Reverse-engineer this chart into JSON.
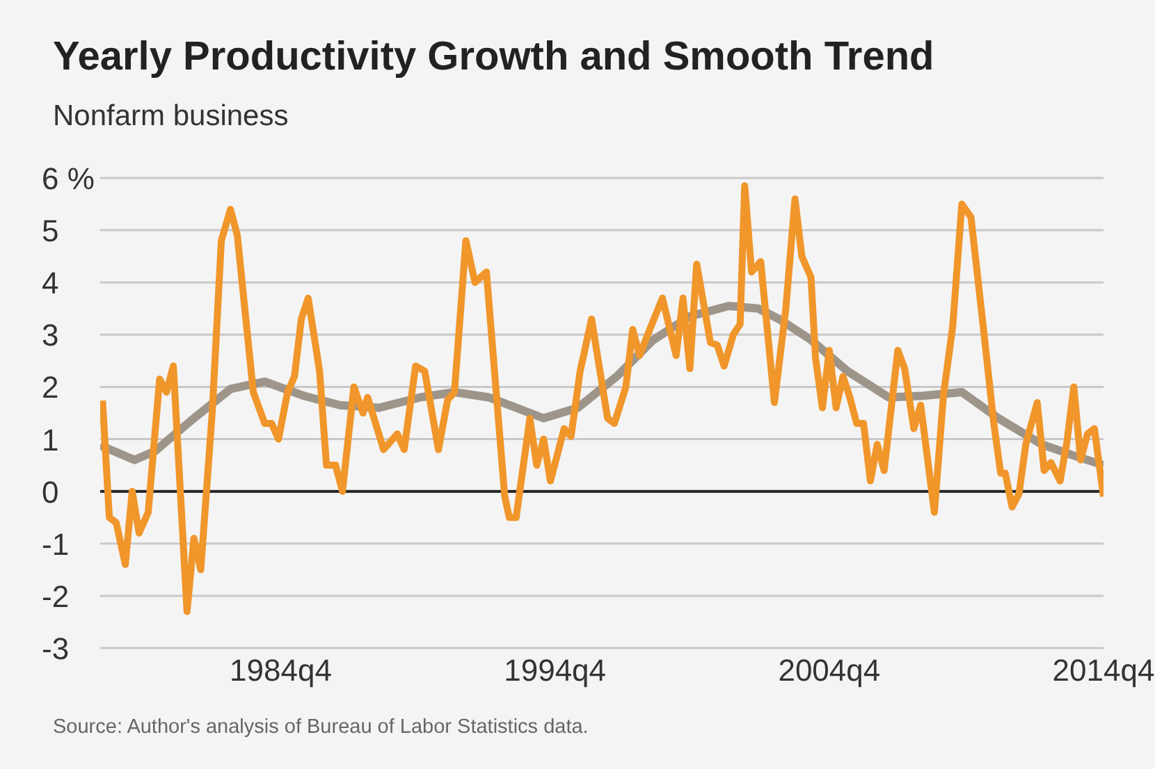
{
  "chart_data": {
    "type": "line",
    "title": "Yearly Productivity Growth and Smooth Trend",
    "subtitle": "Nonfarm business",
    "annotations": [
      "Source: Author's analysis of Bureau of Labor Statistics data."
    ],
    "xlim": [
      "1978-03",
      "2014-10"
    ],
    "xticks": [
      {
        "value": "1984-10",
        "label": "1984q4"
      },
      {
        "value": "1994-10",
        "label": "1994q4"
      },
      {
        "value": "2004-10",
        "label": "2004q4"
      },
      {
        "value": "2014-10",
        "label": "2014q4"
      }
    ],
    "ylim": [
      -3,
      6
    ],
    "yticks": [
      {
        "value": 6,
        "label": "6 %"
      },
      5,
      4,
      3,
      2,
      1,
      0,
      -1,
      -2,
      -3
    ],
    "grid": "y",
    "marker": "none",
    "line_style": "solid",
    "ref_lines": [
      {
        "axis": "y",
        "value": 0,
        "color": "#222222"
      }
    ],
    "series": [
      {
        "color": "#9e958a",
        "x": [
          "1978-03",
          "1979-06",
          "1980-03",
          "1981-08",
          "1982-12",
          "1984-03",
          "1985-08",
          "1986-12",
          "1988-05",
          "1989-11",
          "1991-02",
          "1992-05",
          "1994-05",
          "1995-08",
          "1997-01",
          "1998-05",
          "1999-09",
          "2001-02",
          "2002-03",
          "2002-12",
          "2004-02",
          "2005-06",
          "2006-12",
          "2008-03",
          "2009-08",
          "2010-12",
          "2012-07",
          "2013-08",
          "2014-10"
        ],
        "values": [
          0.88,
          0.6,
          0.77,
          1.4,
          1.96,
          2.1,
          1.83,
          1.65,
          1.6,
          1.8,
          1.9,
          1.8,
          1.4,
          1.6,
          2.2,
          2.9,
          3.35,
          3.55,
          3.5,
          3.3,
          2.9,
          2.3,
          1.8,
          1.83,
          1.9,
          1.4,
          0.9,
          0.7,
          0.5
        ]
      },
      {
        "color": "#f0962a",
        "x": [
          "1978-04",
          "1978-07",
          "1978-10",
          "1979-02",
          "1979-05",
          "1979-08",
          "1979-12",
          "1980-05",
          "1980-08",
          "1980-11",
          "1981-05",
          "1981-08",
          "1981-11",
          "1982-04",
          "1982-08",
          "1982-12",
          "1983-03",
          "1983-10",
          "1984-03",
          "1984-06",
          "1984-09",
          "1985-01",
          "1985-04",
          "1985-07",
          "1985-10",
          "1986-03",
          "1986-06",
          "1986-10",
          "1987-01",
          "1987-06",
          "1987-10",
          "1987-12",
          "1988-07",
          "1989-01",
          "1989-04",
          "1989-09",
          "1990-01",
          "1990-07",
          "1990-11",
          "1991-02",
          "1991-07",
          "1991-11",
          "1992-04",
          "1992-12",
          "1993-02",
          "1993-05",
          "1993-11",
          "1994-02",
          "1994-05",
          "1994-08",
          "1995-02",
          "1995-05",
          "1995-09",
          "1996-02",
          "1996-09",
          "1996-12",
          "1997-05",
          "1997-08",
          "1997-11",
          "1998-03",
          "1998-09",
          "1999-03",
          "1999-06",
          "1999-09",
          "1999-12",
          "2000-06",
          "2000-09",
          "2000-12",
          "2001-04",
          "2001-07",
          "2001-09",
          "2001-12",
          "2002-04",
          "2002-10",
          "2003-03",
          "2003-07",
          "2003-10",
          "2004-02",
          "2004-04",
          "2004-07",
          "2004-10",
          "2005-01",
          "2005-04",
          "2005-07",
          "2005-10",
          "2006-01",
          "2006-04",
          "2006-07",
          "2006-10",
          "2007-04",
          "2007-07",
          "2007-11",
          "2008-02",
          "2008-08",
          "2008-12",
          "2009-04",
          "2009-08",
          "2009-12",
          "2010-05",
          "2010-10",
          "2011-01",
          "2011-03",
          "2011-06",
          "2011-09",
          "2011-12",
          "2012-05",
          "2012-08",
          "2012-11",
          "2013-03",
          "2013-06",
          "2013-09",
          "2013-12",
          "2014-03",
          "2014-06",
          "2014-10"
        ],
        "values": [
          1.74,
          -0.5,
          -0.6,
          -1.4,
          0.0,
          -0.8,
          -0.4,
          2.15,
          1.9,
          2.4,
          -2.3,
          -0.9,
          -1.5,
          1.5,
          4.8,
          5.4,
          4.9,
          1.9,
          1.3,
          1.3,
          1.0,
          1.9,
          2.2,
          3.3,
          3.7,
          2.3,
          0.5,
          0.5,
          0.0,
          2.0,
          1.5,
          1.8,
          0.8,
          1.1,
          0.8,
          2.4,
          2.3,
          0.8,
          1.75,
          1.9,
          4.8,
          4.0,
          4.2,
          -0.1,
          -0.5,
          -0.5,
          1.4,
          0.5,
          1.0,
          0.2,
          1.2,
          1.05,
          2.3,
          3.3,
          1.4,
          1.3,
          2.0,
          3.1,
          2.6,
          3.05,
          3.7,
          2.6,
          3.7,
          2.35,
          4.35,
          2.85,
          2.8,
          2.4,
          3.0,
          3.2,
          5.85,
          4.2,
          4.4,
          1.7,
          3.5,
          5.6,
          4.5,
          4.1,
          2.55,
          1.6,
          2.7,
          1.6,
          2.2,
          1.8,
          1.3,
          1.3,
          0.2,
          0.9,
          0.4,
          2.7,
          2.35,
          1.2,
          1.65,
          -0.4,
          1.85,
          3.15,
          5.5,
          5.25,
          3.3,
          1.3,
          0.35,
          0.35,
          -0.3,
          -0.05,
          0.9,
          1.7,
          0.4,
          0.55,
          0.2,
          0.95,
          2.0,
          0.6,
          1.1,
          1.2,
          -0.1
        ]
      }
    ]
  }
}
